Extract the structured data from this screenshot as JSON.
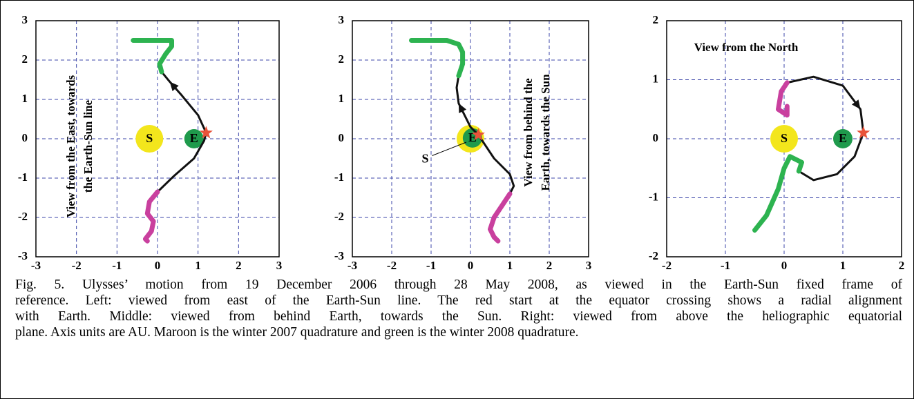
{
  "chart_data": [
    {
      "type": "line",
      "xlim": [
        -3,
        3
      ],
      "ylim": [
        -3,
        3
      ],
      "xticks": [
        -3,
        -2,
        -1,
        0,
        1,
        2,
        3
      ],
      "yticks": [
        -3,
        -2,
        -1,
        0,
        1,
        2,
        3
      ],
      "grid": true,
      "annotation": [
        "View from the East, towards",
        "the Earth-Sun line"
      ],
      "series": [
        {
          "color": "#111111",
          "x": [
            0,
            0.4,
            0.9,
            1.15,
            1.2,
            1.0,
            0.6,
            0.3,
            0.1
          ],
          "values": [
            -1.35,
            -0.95,
            -0.5,
            -0.05,
            0.15,
            0.6,
            1.1,
            1.45,
            1.7
          ]
        },
        {
          "color": "#c9409e",
          "x": [
            0,
            -0.2,
            -0.25,
            -0.1,
            -0.15,
            -0.3,
            -0.25
          ],
          "values": [
            -1.35,
            -1.6,
            -1.9,
            -2.1,
            -2.35,
            -2.55,
            -2.6
          ]
        },
        {
          "color": "#2db350",
          "x": [
            0.1,
            0.05,
            0.2,
            0.35,
            0.35,
            0.1,
            -0.6
          ],
          "values": [
            1.7,
            1.9,
            2.15,
            2.35,
            2.5,
            2.5,
            2.5
          ]
        }
      ],
      "bodies": [
        {
          "label": "S",
          "x": -0.2,
          "y": 0,
          "color": "#f3e61c"
        },
        {
          "label": "E",
          "x": 0.9,
          "y": 0,
          "color": "#1f9a4c"
        }
      ],
      "star": {
        "x": 1.2,
        "y": 0.15,
        "color": "#e8533a"
      }
    },
    {
      "type": "line",
      "xlim": [
        -3,
        3
      ],
      "ylim": [
        -3,
        3
      ],
      "xticks": [
        -3,
        -2,
        -1,
        0,
        1,
        2,
        3
      ],
      "yticks": [
        -3,
        -2,
        -1,
        0,
        1,
        2,
        3
      ],
      "grid": true,
      "annotation": [
        "View from behind the",
        "Earth, towards the Sun"
      ],
      "series": [
        {
          "color": "#111111",
          "x": [
            1.0,
            1.1,
            1.0,
            0.6,
            0.2,
            0,
            -0.3,
            -0.35,
            -0.3
          ],
          "values": [
            -1.4,
            -1.2,
            -0.9,
            -0.5,
            0.1,
            0.3,
            0.9,
            1.3,
            1.6
          ]
        },
        {
          "color": "#c9409e",
          "x": [
            1.0,
            0.8,
            0.6,
            0.5,
            0.6,
            0.7
          ],
          "values": [
            -1.4,
            -1.7,
            -2.0,
            -2.3,
            -2.5,
            -2.6
          ]
        },
        {
          "color": "#2db350",
          "x": [
            -0.3,
            -0.2,
            -0.2,
            -0.3,
            -0.6,
            -1.5
          ],
          "values": [
            1.6,
            1.9,
            2.2,
            2.4,
            2.5,
            2.5
          ]
        }
      ],
      "bodies": [
        {
          "label": "S",
          "x": 0,
          "y": 0,
          "color": "#f3e61c",
          "label_x": -1.15,
          "label_y": -0.5
        },
        {
          "label": "E",
          "x": 0.05,
          "y": 0.02,
          "color": "#1f9a4c"
        }
      ],
      "star": {
        "x": 0.2,
        "y": 0.1,
        "color": "#e8533a"
      }
    },
    {
      "type": "line",
      "xlim": [
        -2,
        2
      ],
      "ylim": [
        -2,
        2
      ],
      "xticks": [
        -2,
        -1,
        0,
        1,
        2
      ],
      "yticks": [
        -2,
        -1,
        0,
        1,
        2
      ],
      "grid": true,
      "annotation": [
        "View from the North"
      ],
      "series": [
        {
          "color": "#111111",
          "x": [
            0.05,
            0.5,
            1.0,
            1.3,
            1.35,
            1.2,
            0.9,
            0.5,
            0.25
          ],
          "values": [
            0.95,
            1.05,
            0.9,
            0.5,
            0.1,
            -0.3,
            -0.6,
            -0.7,
            -0.55
          ]
        },
        {
          "color": "#c9409e",
          "x": [
            0.05,
            -0.05,
            -0.1,
            0.05,
            0.05
          ],
          "values": [
            0.95,
            0.8,
            0.5,
            0.4,
            0.55
          ]
        },
        {
          "color": "#2db350",
          "x": [
            0.25,
            0.3,
            0.1,
            0.0,
            -0.1,
            -0.3,
            -0.5
          ],
          "values": [
            -0.55,
            -0.4,
            -0.3,
            -0.5,
            -0.85,
            -1.3,
            -1.55
          ]
        }
      ],
      "bodies": [
        {
          "label": "S",
          "x": 0,
          "y": 0,
          "color": "#f3e61c"
        },
        {
          "label": "E",
          "x": 1,
          "y": 0,
          "color": "#1f9a4c"
        }
      ],
      "star": {
        "x": 1.35,
        "y": 0.1,
        "color": "#e8533a"
      }
    }
  ],
  "caption": [
    "Fig. 5. Ulysses’ motion from 19 December 2006 through 28 May 2008, as viewed in the Earth-Sun fixed frame of",
    "reference. Left: viewed from east of the Earth-Sun line. The red start at the equator crossing shows a radial alignment",
    "with Earth. Middle: viewed from behind Earth, towards the Sun. Right: viewed from above the heliographic equatorial",
    "plane. Axis units are AU. Maroon is the winter 2007 quadrature and green is the winter 2008 quadrature."
  ]
}
